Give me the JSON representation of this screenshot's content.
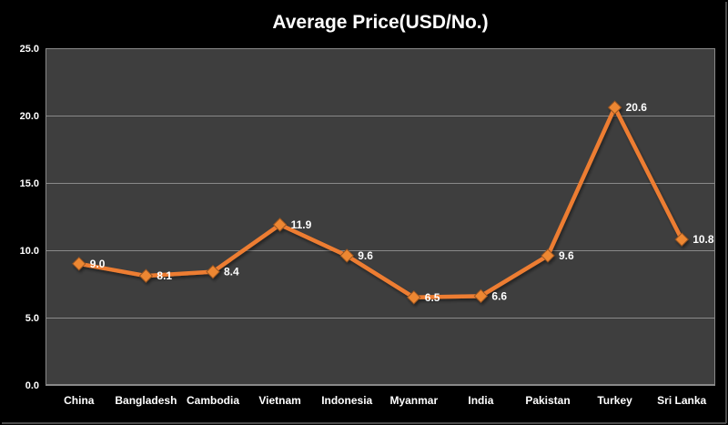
{
  "colors": {
    "page_bg": "#000000",
    "plot_bg": "#3E3E3E",
    "gridline": "#898989",
    "text": "#FFFFFF",
    "line": "#ED7D31",
    "marker_fill": "#ED8733",
    "marker_stroke": "#9A5520",
    "frame_border": "#4B4B4B"
  },
  "chart_data": {
    "type": "line",
    "title": "Average Price(USD/No.)",
    "categories": [
      "China",
      "Bangladesh",
      "Cambodia",
      "Vietnam",
      "Indonesia",
      "Myanmar",
      "India",
      "Pakistan",
      "Turkey",
      "Sri Lanka"
    ],
    "values": [
      9.0,
      8.1,
      8.4,
      11.9,
      9.6,
      6.5,
      6.6,
      9.6,
      20.6,
      10.8
    ],
    "data_labels": [
      "9.0",
      "8.1",
      "8.4",
      "11.9",
      "9.6",
      "6.5",
      "6.6",
      "9.6",
      "20.6",
      "10.8"
    ],
    "xlabel": "",
    "ylabel": "",
    "ylim": [
      0,
      25
    ],
    "yticks": [
      {
        "value": 0,
        "label": "0.0"
      },
      {
        "value": 5,
        "label": "5.0"
      },
      {
        "value": 10,
        "label": "10.0"
      },
      {
        "value": 15,
        "label": "15.0"
      },
      {
        "value": 20,
        "label": "20.0"
      },
      {
        "value": 25,
        "label": "25.0"
      }
    ],
    "grid": true,
    "legend_position": "none",
    "series": [
      {
        "name": "Average Price",
        "color": "#ED7D31",
        "marker": "diamond"
      }
    ]
  }
}
